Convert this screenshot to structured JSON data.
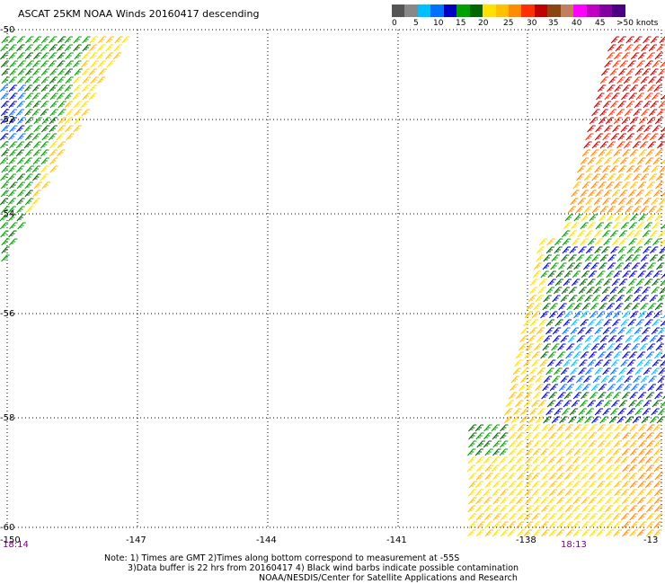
{
  "title": "ASCAT 25KM NOAA Winds 20160417 descending",
  "legend": {
    "colors": [
      "#555555",
      "#888888",
      "#00bfff",
      "#0070ff",
      "#0000c0",
      "#00a000",
      "#006600",
      "#ffe000",
      "#ffc000",
      "#ff8c00",
      "#ff3000",
      "#c00000",
      "#8b4513",
      "#c08060",
      "#ff00ff",
      "#c000c0",
      "#8000a0",
      "#4b0082"
    ],
    "labels": [
      "0",
      "5",
      "10",
      "15",
      "20",
      "25",
      "30",
      "35",
      "40",
      "45",
      ">50 knots"
    ]
  },
  "axes": {
    "lon_labels": [
      "-150",
      "-147",
      "-144",
      "-141",
      "-138",
      "-13"
    ],
    "lat_labels": [
      "-50",
      "-52",
      "-54",
      "-56",
      "-58",
      "-60"
    ]
  },
  "times": [
    "18:14",
    "18:13"
  ],
  "notes": [
    "Note: 1) Times are GMT 2)Times along bottom correspond to measurement at -55S",
    "3)Data buffer is 22 hrs from 20160417 4) Black wind barbs indicate possible contamination",
    "NOAA/NESDIS/Center for Satellite Applications and Research"
  ]
}
